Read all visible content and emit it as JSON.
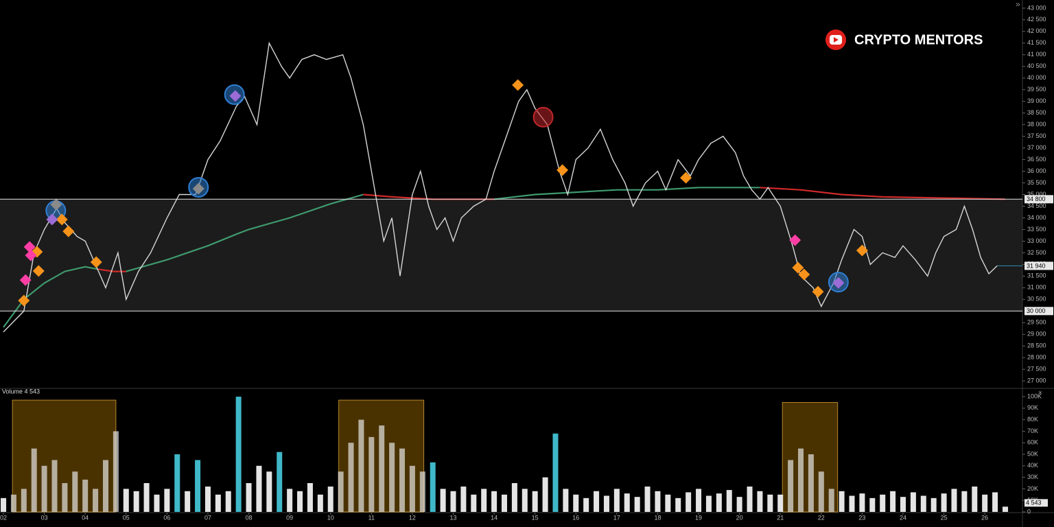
{
  "chart_data": {
    "type": "price-volume",
    "watermark": "CRYPTO MENTORS",
    "xlim": [
      1.916,
      26.92
    ],
    "xticks": [
      {
        "value": 2,
        "label": "02"
      },
      {
        "value": 3,
        "label": "03"
      },
      {
        "value": 4,
        "label": "04"
      },
      {
        "value": 5,
        "label": "05"
      },
      {
        "value": 6,
        "label": "06"
      },
      {
        "value": 7,
        "label": "07"
      },
      {
        "value": 8,
        "label": "08"
      },
      {
        "value": 9,
        "label": "09"
      },
      10,
      11,
      12,
      13,
      14,
      15,
      16,
      17,
      18,
      19,
      20,
      21,
      22,
      23,
      24,
      25,
      26
    ],
    "ylim": [
      26680,
      43350
    ],
    "yticks": [
      {
        "value": 27000,
        "label": "27 000"
      },
      {
        "value": 27500,
        "label": "27 500"
      },
      {
        "value": 28000,
        "label": "28 000"
      },
      {
        "value": 28500,
        "label": "28 500"
      },
      {
        "value": 29000,
        "label": "29 000"
      },
      {
        "value": 29500,
        "label": "29 500"
      },
      {
        "value": 30500,
        "label": "30 500"
      },
      {
        "value": 31000,
        "label": "31 000"
      },
      {
        "value": 31500,
        "label": "31 500"
      },
      {
        "value": 32000,
        "label": "32 000"
      },
      {
        "value": 32500,
        "label": "32 500"
      },
      {
        "value": 33000,
        "label": "33 000"
      },
      {
        "value": 33500,
        "label": "33 500"
      },
      {
        "value": 34000,
        "label": "34 000"
      },
      {
        "value": 34500,
        "label": "34 500"
      },
      {
        "value": 35000,
        "label": "35 000"
      },
      {
        "value": 35500,
        "label": "35 500"
      },
      {
        "value": 36000,
        "label": "36 000"
      },
      {
        "value": 36500,
        "label": "36 500"
      },
      {
        "value": 37000,
        "label": "37 000"
      },
      {
        "value": 37500,
        "label": "37 500"
      },
      {
        "value": 38000,
        "label": "38 000"
      },
      {
        "value": 38500,
        "label": "38 500"
      },
      {
        "value": 39000,
        "label": "39 000"
      },
      {
        "value": 39500,
        "label": "39 500"
      },
      {
        "value": 40000,
        "label": "40 000"
      },
      {
        "value": 40500,
        "label": "40 500"
      },
      {
        "value": 41000,
        "label": "41 000"
      },
      {
        "value": 41500,
        "label": "41 500"
      },
      {
        "value": 42000,
        "label": "42 000"
      },
      {
        "value": 42500,
        "label": "42 500"
      },
      {
        "value": 43000,
        "label": "43 000"
      }
    ],
    "levels": [
      {
        "value": 34800,
        "label": "34 800"
      },
      {
        "value": 30000,
        "label": "30 000"
      }
    ],
    "last_price": {
      "value": 31940,
      "label": "31 940"
    },
    "price": {
      "color": "#d8d8d8",
      "x": [
        2.0,
        2.5,
        2.75,
        3.0,
        3.3,
        3.5,
        3.8,
        4.0,
        4.3,
        4.5,
        4.8,
        5.0,
        5.3,
        5.6,
        6.0,
        6.3,
        6.7,
        7.0,
        7.3,
        7.7,
        7.9,
        8.2,
        8.5,
        8.8,
        9.0,
        9.3,
        9.6,
        9.9,
        10.3,
        10.5,
        10.8,
        11.1,
        11.3,
        11.5,
        11.7,
        12.0,
        12.2,
        12.4,
        12.6,
        12.8,
        13.0,
        13.2,
        13.5,
        13.8,
        14.0,
        14.3,
        14.6,
        14.8,
        15.0,
        15.3,
        15.6,
        15.8,
        16.0,
        16.3,
        16.6,
        16.9,
        17.2,
        17.4,
        17.7,
        18.0,
        18.2,
        18.5,
        18.8,
        19.0,
        19.3,
        19.6,
        19.9,
        20.1,
        20.3,
        20.5,
        20.7,
        21.0,
        21.3,
        21.5,
        21.8,
        22.0,
        22.3,
        22.5,
        22.8,
        23.0,
        23.2,
        23.5,
        23.8,
        24.0,
        24.3,
        24.6,
        24.8,
        25.0,
        25.3,
        25.5,
        25.7,
        25.9,
        26.1,
        26.3
      ],
      "values": [
        29100,
        30000,
        32500,
        33500,
        34400,
        33800,
        33200,
        33000,
        31800,
        31000,
        32500,
        30500,
        31700,
        32500,
        34000,
        35000,
        35000,
        36500,
        37300,
        38800,
        39200,
        38000,
        41500,
        40500,
        40000,
        40800,
        41000,
        40800,
        41000,
        40000,
        38000,
        35000,
        33000,
        34000,
        31500,
        35000,
        36000,
        34500,
        33500,
        34000,
        33000,
        34000,
        34500,
        34800,
        36000,
        37500,
        39000,
        39500,
        38700,
        38000,
        36000,
        35000,
        36500,
        37000,
        37800,
        36500,
        35500,
        34500,
        35500,
        36000,
        35200,
        36500,
        35800,
        36500,
        37200,
        37500,
        36800,
        35800,
        35200,
        34800,
        35300,
        34500,
        32800,
        31500,
        31000,
        30200,
        31200,
        32200,
        33500,
        33200,
        32000,
        32500,
        32300,
        32800,
        32200,
        31500,
        32500,
        33200,
        33500,
        34500,
        33500,
        32300,
        31600,
        31940
      ]
    },
    "moving_average": {
      "x": [
        2,
        2.5,
        3,
        3.5,
        4,
        4.3,
        4.7,
        5,
        6,
        7,
        7.7,
        8,
        9,
        10,
        10.8,
        11.5,
        12.5,
        13.5,
        14,
        15,
        16,
        17,
        18,
        19,
        20,
        20.5,
        21.5,
        22.5,
        23.5,
        25,
        26.5
      ],
      "series": [
        {
          "color": "#3f9a6e",
          "values": [
            29300,
            30500,
            31200,
            31700,
            31900,
            31800,
            null,
            31700,
            32200,
            32800,
            33300,
            33500,
            34000,
            34600,
            35000,
            null,
            null,
            null,
            34800,
            35000,
            35100,
            35200,
            35200,
            35300,
            35300,
            35300,
            null,
            null,
            null,
            null,
            null
          ]
        },
        {
          "color": "#d02a2a",
          "values": [
            null,
            null,
            null,
            null,
            null,
            31800,
            31700,
            31700,
            null,
            null,
            null,
            null,
            null,
            null,
            35000,
            34900,
            34800,
            34800,
            34800,
            null,
            null,
            null,
            null,
            null,
            null,
            35300,
            35200,
            35000,
            34900,
            34850,
            34800
          ]
        }
      ]
    },
    "markers": [
      {
        "shape": "circle",
        "color": "#2f7fd4",
        "x": 3.28,
        "y": 34310
      },
      {
        "shape": "circle",
        "color": "#2f7fd4",
        "x": 6.77,
        "y": 35310
      },
      {
        "shape": "circle",
        "color": "#2f7fd4",
        "x": 7.65,
        "y": 39290
      },
      {
        "shape": "circle",
        "color": "#2f7fd4",
        "x": 22.42,
        "y": 31240
      },
      {
        "shape": "circle",
        "color": "#c0262a",
        "x": 15.2,
        "y": 38320
      },
      {
        "shape": "diamond",
        "color": "#f7931a",
        "x": 2.5,
        "y": 30450
      },
      {
        "shape": "diamond",
        "color": "#f7931a",
        "x": 2.82,
        "y": 32540
      },
      {
        "shape": "diamond",
        "color": "#f7931a",
        "x": 2.86,
        "y": 31720
      },
      {
        "shape": "diamond",
        "color": "#f7931a",
        "x": 3.43,
        "y": 33930
      },
      {
        "shape": "diamond",
        "color": "#f7931a",
        "x": 3.59,
        "y": 33420
      },
      {
        "shape": "diamond",
        "color": "#f7931a",
        "x": 4.27,
        "y": 32100
      },
      {
        "shape": "diamond",
        "color": "#f7931a",
        "x": 14.58,
        "y": 39700
      },
      {
        "shape": "diamond",
        "color": "#f7931a",
        "x": 15.67,
        "y": 36050
      },
      {
        "shape": "diamond",
        "color": "#f7931a",
        "x": 18.69,
        "y": 35720
      },
      {
        "shape": "diamond",
        "color": "#f7931a",
        "x": 21.43,
        "y": 31860
      },
      {
        "shape": "diamond",
        "color": "#f7931a",
        "x": 21.58,
        "y": 31570
      },
      {
        "shape": "diamond",
        "color": "#f7931a",
        "x": 21.92,
        "y": 30830
      },
      {
        "shape": "diamond",
        "color": "#f7931a",
        "x": 23.0,
        "y": 32600
      },
      {
        "shape": "diamond",
        "color": "#ff3ea5",
        "x": 2.64,
        "y": 32750
      },
      {
        "shape": "diamond",
        "color": "#ff3ea5",
        "x": 2.67,
        "y": 32390
      },
      {
        "shape": "diamond",
        "color": "#ff3ea5",
        "x": 2.54,
        "y": 31330
      },
      {
        "shape": "diamond",
        "color": "#ff3ea5",
        "x": 21.36,
        "y": 33040
      },
      {
        "shape": "diamond",
        "color": "#9b6bd6",
        "x": 3.19,
        "y": 33930
      },
      {
        "shape": "diamond",
        "color": "#9b6bd6",
        "x": 7.67,
        "y": 39230
      },
      {
        "shape": "diamond",
        "color": "#9b6bd6",
        "x": 22.42,
        "y": 31210
      },
      {
        "shape": "diamond",
        "color": "#8a8a8a",
        "x": 3.29,
        "y": 34570
      },
      {
        "shape": "diamond",
        "color": "#8a8a8a",
        "x": 6.77,
        "y": 35250
      }
    ],
    "volume": {
      "title": "Volume 4 543",
      "last_value_label": "4 543",
      "ylim": [
        0,
        106000
      ],
      "yticks": [
        0,
        {
          "value": 10000,
          "label": "10K"
        },
        {
          "value": 20000,
          "label": "20K"
        },
        {
          "value": 30000,
          "label": "30K"
        },
        {
          "value": 40000,
          "label": "40K"
        },
        {
          "value": 50000,
          "label": "50K"
        },
        {
          "value": 60000,
          "label": "60K"
        },
        {
          "value": 70000,
          "label": "70K"
        },
        {
          "value": 80000,
          "label": "80K"
        },
        {
          "value": 90000,
          "label": "90K"
        },
        {
          "value": 100000,
          "label": "100K"
        }
      ],
      "highlights": [
        {
          "x": [
            2.22,
            4.75
          ],
          "top": 97000
        },
        {
          "x": [
            10.2,
            12.28
          ],
          "top": 97000
        },
        {
          "x": [
            21.05,
            22.4
          ],
          "top": 95000
        }
      ],
      "series": [
        {
          "color": "#e4e4e4",
          "x": [
            2.0,
            2.25,
            2.5,
            2.75,
            3.0,
            3.25,
            3.5,
            3.75,
            4.0,
            4.25,
            4.5,
            4.75,
            5.0,
            5.25,
            5.5,
            5.75,
            6.0,
            6.5,
            7.0,
            7.25,
            7.5,
            8.0,
            8.25,
            8.5,
            9.0,
            9.25,
            9.5,
            9.75,
            10.0,
            10.25,
            10.5,
            10.75,
            11.0,
            11.25,
            11.5,
            11.75,
            12.0,
            12.25,
            12.75,
            13.0,
            13.25,
            13.5,
            13.75,
            14.0,
            14.25,
            14.5,
            14.75,
            15.0,
            15.25,
            15.75,
            16.0,
            16.25,
            16.5,
            16.75,
            17.0,
            17.25,
            17.5,
            17.75,
            18.0,
            18.25,
            18.5,
            18.75,
            19.0,
            19.25,
            19.5,
            19.75,
            20.0,
            20.25,
            20.5,
            20.75,
            21.0,
            21.25,
            21.5,
            21.75,
            22.0,
            22.25,
            22.5,
            22.75,
            23.0,
            23.25,
            23.5,
            23.75,
            24.0,
            24.25,
            24.5,
            24.75,
            25.0,
            25.25,
            25.5,
            25.75,
            26.0,
            26.25,
            26.5
          ],
          "values": [
            12000,
            15000,
            20000,
            55000,
            40000,
            45000,
            25000,
            35000,
            28000,
            20000,
            45000,
            70000,
            20000,
            18000,
            25000,
            15000,
            20000,
            18000,
            22000,
            15000,
            18000,
            25000,
            40000,
            35000,
            20000,
            18000,
            25000,
            15000,
            22000,
            35000,
            60000,
            80000,
            65000,
            75000,
            60000,
            55000,
            40000,
            35000,
            20000,
            18000,
            22000,
            15000,
            20000,
            18000,
            15000,
            25000,
            20000,
            18000,
            30000,
            20000,
            15000,
            12000,
            18000,
            14000,
            20000,
            16000,
            13000,
            22000,
            18000,
            15000,
            12000,
            17000,
            20000,
            14000,
            16000,
            19000,
            13000,
            22000,
            18000,
            15000,
            15000,
            45000,
            55000,
            50000,
            35000,
            20000,
            18000,
            14000,
            16000,
            12000,
            15000,
            18000,
            13000,
            17000,
            14000,
            12000,
            16000,
            20000,
            18000,
            22000,
            15000,
            17000,
            4543
          ]
        },
        {
          "color": "#3fb8c8",
          "x": [
            6.25,
            6.75,
            7.75,
            8.75,
            12.5,
            15.5
          ],
          "values": [
            50000,
            45000,
            100000,
            52000,
            43000,
            68000
          ]
        }
      ]
    }
  }
}
